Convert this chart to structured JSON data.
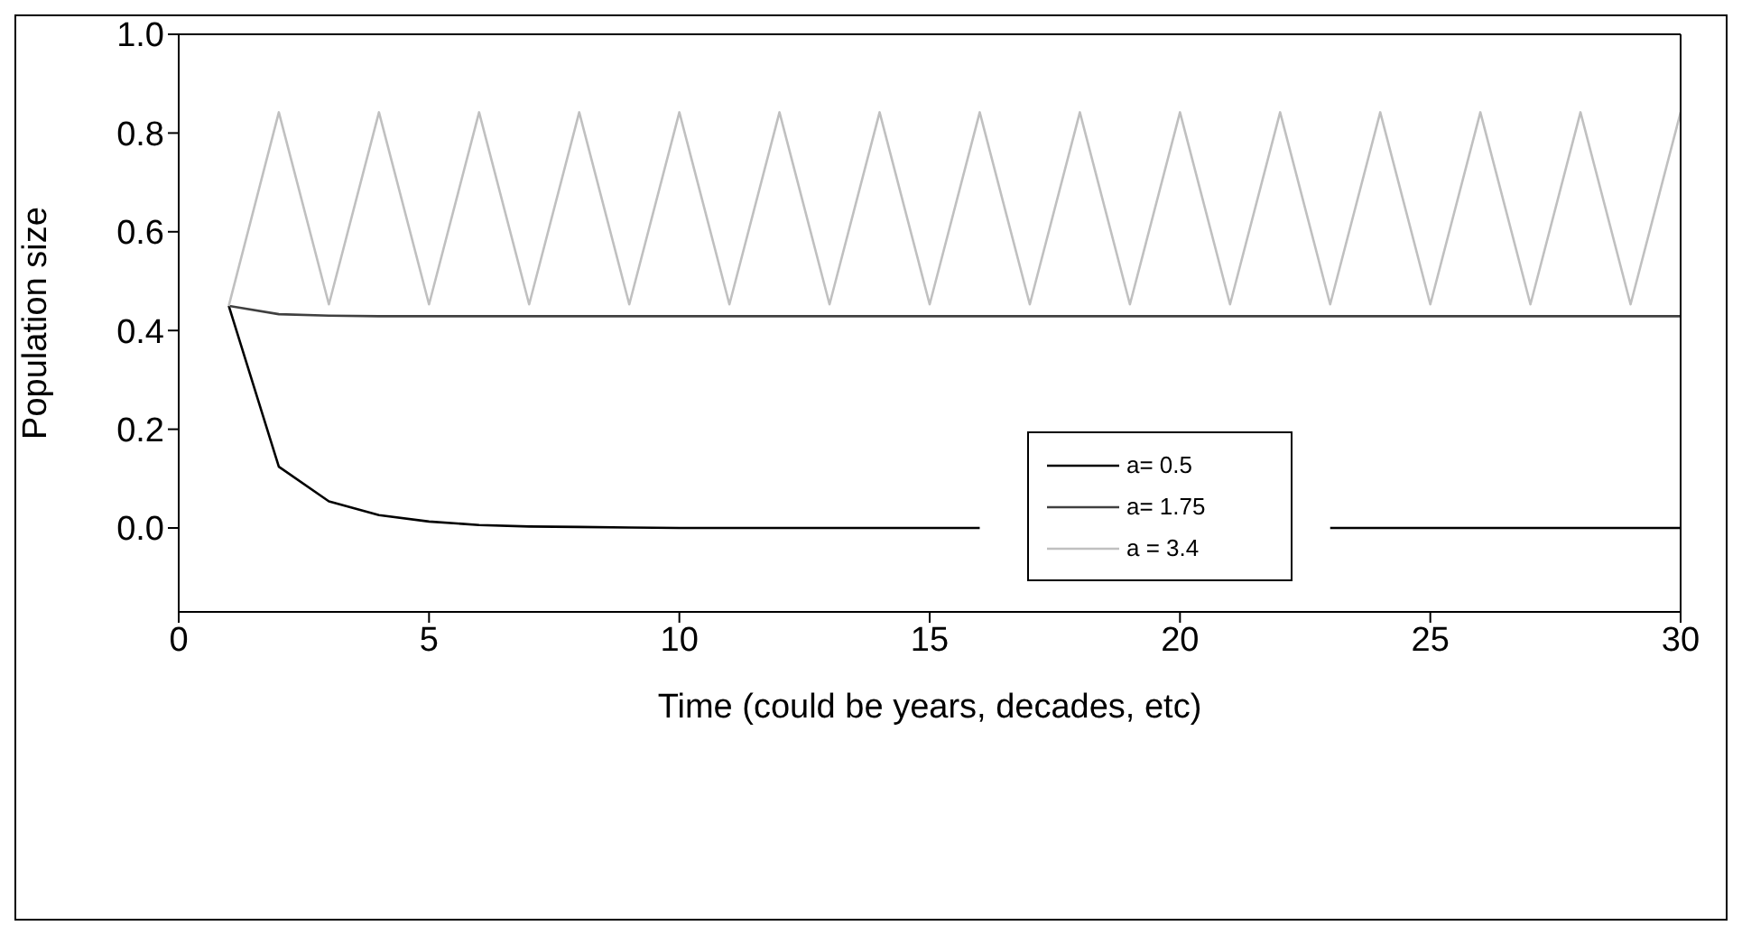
{
  "chart_data": {
    "type": "line",
    "xlabel": "Time (could be years, decades, etc)",
    "ylabel": "Population size",
    "x": [
      1,
      2,
      3,
      4,
      5,
      6,
      7,
      8,
      9,
      10,
      11,
      12,
      13,
      14,
      15,
      16,
      17,
      18,
      19,
      20,
      21,
      22,
      23,
      24,
      25,
      26,
      27,
      28,
      29,
      30
    ],
    "xlim": [
      0,
      30
    ],
    "xticks": [
      0,
      5,
      10,
      15,
      20,
      25,
      30
    ],
    "ylim": [
      -0.17,
      1.0
    ],
    "yticks": [
      {
        "value": 0,
        "label": "0.0"
      },
      {
        "value": 0.2,
        "label": "0.2"
      },
      {
        "value": 0.4,
        "label": "0.4"
      },
      {
        "value": 0.6,
        "label": "0.6"
      },
      {
        "value": 0.8,
        "label": "0.8"
      },
      {
        "value": 1,
        "label": "1.0"
      }
    ],
    "grid": false,
    "legend": "right",
    "marker": "none",
    "line_style": "solid",
    "series": [
      {
        "name": "a= 0.5",
        "color": "#000000",
        "values": [
          0.45,
          0.124,
          0.054,
          0.026,
          0.013,
          0.006,
          0.003,
          0.002,
          0.001,
          0,
          0,
          0,
          0,
          0,
          0,
          0,
          null,
          null,
          null,
          null,
          null,
          null,
          0,
          0,
          0,
          0,
          0,
          0,
          0,
          0
        ]
      },
      {
        "name": "a= 1.75",
        "color": "#404040",
        "values": [
          0.45,
          0.433,
          0.43,
          0.429,
          0.429,
          0.429,
          0.429,
          0.429,
          0.429,
          0.429,
          0.429,
          0.429,
          0.429,
          0.429,
          0.429,
          0.429,
          0.429,
          0.429,
          0.429,
          0.429,
          0.429,
          0.429,
          0.429,
          0.429,
          0.429,
          0.429,
          0.429,
          0.429,
          0.429,
          0.429
        ]
      },
      {
        "name": "a = 3.4",
        "color": "#c0c0c0",
        "values": [
          0.45,
          0.842,
          0.453,
          0.842,
          0.453,
          0.842,
          0.453,
          0.842,
          0.453,
          0.842,
          0.453,
          0.842,
          0.453,
          0.842,
          0.453,
          0.842,
          0.453,
          0.842,
          0.453,
          0.842,
          0.453,
          0.842,
          0.453,
          0.842,
          0.453,
          0.842,
          0.453,
          0.842,
          0.453,
          0.842
        ]
      }
    ]
  }
}
